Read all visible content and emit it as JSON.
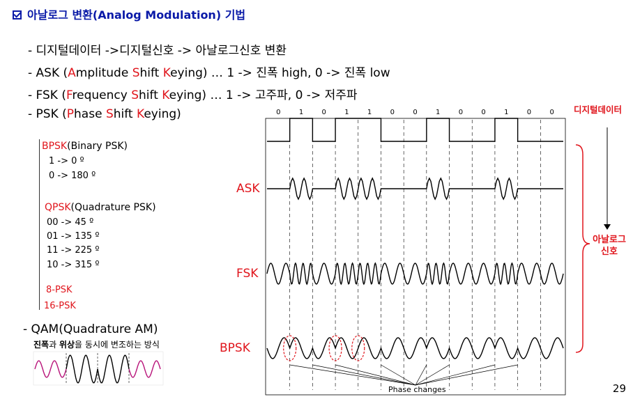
{
  "title": "아날로그 변환(Analog Modulation) 기법",
  "bullets": [
    "- 디지털데이터 ->디지털신호 -> 아날로그신호 변환",
    "- ASK (Amplitude Shift Keying)  …  1 -> 진폭 high,   0 -> 진폭 low",
    "- FSK (Frequency Shift Keying)  …  1 -> 고주파,      0 -> 저주파",
    "- PSK (Phase Shift Keying)"
  ],
  "psk_tree": {
    "bpsk": {
      "name": "BPSK",
      "desc": "(Binary PSK)",
      "items": [
        "1 -> 0 º",
        "0 ->  180 º"
      ]
    },
    "qpsk": {
      "name": "QPSK",
      "desc": "(Quadrature PSK)",
      "items": [
        "00  -> 45 º",
        "01  -> 135 º",
        "11  -> 225 º",
        "10   -> 315 º"
      ]
    },
    "psk8": "8-PSK",
    "psk16": "16-PSK"
  },
  "qam": {
    "title": "- QAM(Quadrature AM)",
    "sub_bold1": "진폭",
    "sub_mid": "과 ",
    "sub_bold2": "위상",
    "sub_rest": "을 동시에 변조하는 방식"
  },
  "diagram": {
    "bits": [
      "0",
      "1",
      "0",
      "1",
      "1",
      "0",
      "0",
      "1",
      "0",
      "0",
      "1",
      "0",
      "0"
    ],
    "digital_label": "디지털데이터",
    "analog_label": "아날로그\n신호",
    "analog_label_1": "아날로그",
    "analog_label_2": "신호",
    "ask_label": "ASK",
    "fsk_label": "FSK",
    "bpsk_label": "BPSK",
    "phase_changes": "Phase changes"
  },
  "page_number": "29",
  "colors": {
    "title": "#0a1aa8",
    "accent": "#e0151c",
    "qam_wave": "#b8147a"
  }
}
